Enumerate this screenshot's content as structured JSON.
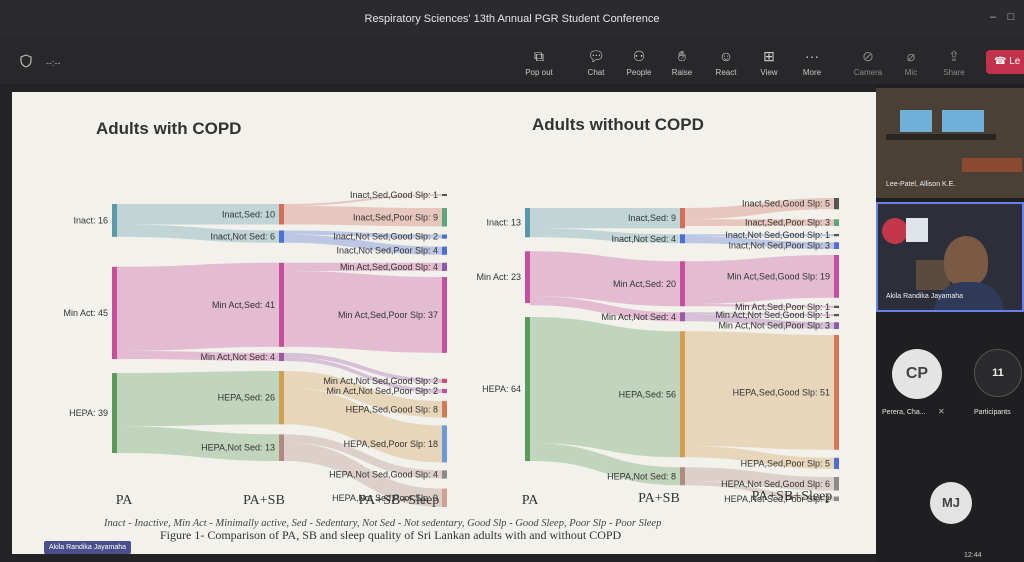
{
  "window": {
    "title": "Respiratory Sciences' 13th Annual PGR Student Conference",
    "timer": "--:--"
  },
  "toolbar": {
    "buttons": [
      {
        "label": "Pop out",
        "icon": "pop-out-icon"
      },
      {
        "label": "Chat",
        "icon": "chat-icon"
      },
      {
        "label": "People",
        "icon": "people-icon"
      },
      {
        "label": "Raise",
        "icon": "raise-hand-icon"
      },
      {
        "label": "React",
        "icon": "react-icon"
      },
      {
        "label": "View",
        "icon": "view-icon"
      },
      {
        "label": "More",
        "icon": "more-icon"
      },
      {
        "label": "Camera",
        "icon": "camera-off-icon"
      },
      {
        "label": "Mic",
        "icon": "mic-off-icon"
      },
      {
        "label": "Share",
        "icon": "share-icon"
      }
    ],
    "leave_label": "Le"
  },
  "slide": {
    "left_title": "Adults with COPD",
    "right_title": "Adults without COPD",
    "stages": [
      "PA",
      "PA+SB",
      "PA+SB+Sleep"
    ],
    "left": {
      "pa": [
        {
          "label": "Inact: 16",
          "value": 16,
          "color": "#5a9aa8"
        },
        {
          "label": "Min Act: 45",
          "value": 45,
          "color": "#c44f9c"
        },
        {
          "label": "HEPA: 39",
          "value": 39,
          "color": "#5a9a5a"
        }
      ],
      "sb": [
        {
          "label": "Inact,Sed: 10",
          "value": 10,
          "color": "#d0705a"
        },
        {
          "label": "Inact,Not Sed: 6",
          "value": 6,
          "color": "#4d6fd0"
        },
        {
          "label": "Min Act,Sed: 41",
          "value": 41,
          "color": "#c44f9c"
        },
        {
          "label": "Min Act,Not Sed: 4",
          "value": 4,
          "color": "#9a5aa8"
        },
        {
          "label": "HEPA,Sed: 26",
          "value": 26,
          "color": "#d0a050"
        },
        {
          "label": "HEPA,Not Sed: 13",
          "value": 13,
          "color": "#b08a80"
        }
      ],
      "sleep": [
        {
          "label": "Inact,Sed,Good Slp: 1",
          "value": 1,
          "color": "#555"
        },
        {
          "label": "Inact,Sed,Poor Slp: 9",
          "value": 9,
          "color": "#5aa87a"
        },
        {
          "label": "Inact,Not Sed,Good Slp: 2",
          "value": 2,
          "color": "#4d6fd0"
        },
        {
          "label": "Inact,Not Sed,Poor Slp: 4",
          "value": 4,
          "color": "#4d6fd0"
        },
        {
          "label": "Min Act,Sed,Good Slp: 4",
          "value": 4,
          "color": "#8a5ab0"
        },
        {
          "label": "Min Act,Sed,Poor Slp: 37",
          "value": 37,
          "color": "#c44f9c"
        },
        {
          "label": "Min Act,Not Sed,Good Slp: 2",
          "value": 2,
          "color": "#d04a70"
        },
        {
          "label": "Min Act,Not Sed,Poor Slp: 2",
          "value": 2,
          "color": "#c44f9c"
        },
        {
          "label": "HEPA,Sed,Good Slp: 8",
          "value": 8,
          "color": "#d07a5a"
        },
        {
          "label": "HEPA,Sed,Poor Slp: 18",
          "value": 18,
          "color": "#6a9ad8"
        },
        {
          "label": "HEPA,Not Sed,Good Slp: 4",
          "value": 4,
          "color": "#8a8a8a"
        },
        {
          "label": "HEPA,Not Sed,Poor Slp: 9",
          "value": 9,
          "color": "#d0a090"
        }
      ]
    },
    "right": {
      "pa": [
        {
          "label": "Inact: 13",
          "value": 13,
          "color": "#5a9aa8"
        },
        {
          "label": "Min Act: 23",
          "value": 23,
          "color": "#c44f9c"
        },
        {
          "label": "HEPA: 64",
          "value": 64,
          "color": "#5a9a5a"
        }
      ],
      "sb": [
        {
          "label": "Inact,Sed: 9",
          "value": 9,
          "color": "#d0705a"
        },
        {
          "label": "Inact,Not Sed: 4",
          "value": 4,
          "color": "#4d6fd0"
        },
        {
          "label": "Min Act,Sed: 20",
          "value": 20,
          "color": "#c44f9c"
        },
        {
          "label": "Min Act,Not Sed: 4",
          "value": 4,
          "color": "#9a5aa8"
        },
        {
          "label": "HEPA,Sed: 56",
          "value": 56,
          "color": "#d0a050"
        },
        {
          "label": "HEPA,Not Sed: 8",
          "value": 8,
          "color": "#b08a80"
        }
      ],
      "sleep": [
        {
          "label": "Inact,Sed,Good Slp: 5",
          "value": 5,
          "color": "#555"
        },
        {
          "label": "Inact,Sed,Poor Slp: 3",
          "value": 3,
          "color": "#5aa87a"
        },
        {
          "label": "Inact,Not Sed,Good Slp: 1",
          "value": 1,
          "color": "#555"
        },
        {
          "label": "Inact,Not Sed,Poor Slp: 3",
          "value": 3,
          "color": "#4d6fd0"
        },
        {
          "label": "Min Act,Sed,Good Slp: 19",
          "value": 19,
          "color": "#c44f9c"
        },
        {
          "label": "Min Act,Sed,Poor Slp: 1",
          "value": 1,
          "color": "#555"
        },
        {
          "label": "Min Act,Not Sed,Good Slp: 1",
          "value": 1,
          "color": "#555"
        },
        {
          "label": "Min Act,Not Sed,Poor Slp: 3",
          "value": 3,
          "color": "#8a5ab0"
        },
        {
          "label": "HEPA,Sed,Good Slp: 51",
          "value": 51,
          "color": "#d07a5a"
        },
        {
          "label": "HEPA,Sed,Poor Slp: 5",
          "value": 5,
          "color": "#4d6fd0"
        },
        {
          "label": "HEPA,Not Sed,Good Slp: 6",
          "value": 6,
          "color": "#8a8a8a"
        },
        {
          "label": "HEPA,Not Sed,Poor Slp: 2",
          "value": 2,
          "color": "#8a8a8a"
        }
      ]
    },
    "legend": "Inact - Inactive, Min Act - Minimally active, Sed - Sedentary, Not Sed - Not sedentary, Good Slp - Good Sleep, Poor Slp - Poor Sleep",
    "caption": "Figure 1- Comparison of PA, SB and sleep quality of Sri Lankan adults with and without COPD"
  },
  "participants_panel": {
    "tiles": [
      {
        "name": "Lee-Patel, Allison K.E."
      },
      {
        "name": "Akila Randika Jayamaha"
      }
    ],
    "avatars": [
      {
        "initials": "CP",
        "name": "Perera, Cha..."
      },
      {
        "initials": "11",
        "name": "Participants"
      },
      {
        "initials": "MJ",
        "name": ""
      }
    ]
  },
  "presenter_tag": "Akila Randika Jayamaha",
  "clock": "12:44"
}
